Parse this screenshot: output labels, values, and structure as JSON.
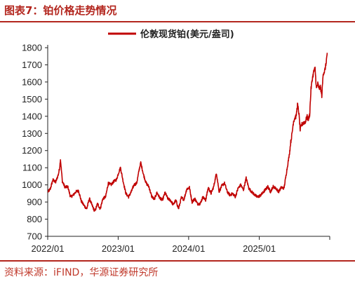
{
  "header": {
    "title": "图表7：铂价格走势情况"
  },
  "source": {
    "text": "资料来源：iFIND，华源证券研究所"
  },
  "colors": {
    "accent": "#b3261e",
    "series": "#c00000",
    "axis": "#222222"
  },
  "chart_data": {
    "type": "line",
    "title": "",
    "xlabel": "",
    "ylabel": "",
    "ylim": [
      700,
      1800
    ],
    "yticks": [
      700,
      800,
      900,
      1000,
      1100,
      1200,
      1300,
      1400,
      1500,
      1600,
      1700,
      1800
    ],
    "xticks": [
      "2022/01",
      "2023/01",
      "2024/01",
      "2025/01"
    ],
    "grid": false,
    "legend": "top",
    "series": [
      {
        "name": "伦敦现货铂(美元/盎司)",
        "color": "#c00000",
        "points": [
          [
            "2022-01-03",
            960
          ],
          [
            "2022-01-14",
            975
          ],
          [
            "2022-01-28",
            1030
          ],
          [
            "2022-02-11",
            1015
          ],
          [
            "2022-02-25",
            1060
          ],
          [
            "2022-03-04",
            1100
          ],
          [
            "2022-03-08",
            1150
          ],
          [
            "2022-03-18",
            1020
          ],
          [
            "2022-04-01",
            985
          ],
          [
            "2022-04-15",
            990
          ],
          [
            "2022-04-29",
            930
          ],
          [
            "2022-05-13",
            940
          ],
          [
            "2022-05-27",
            960
          ],
          [
            "2022-06-10",
            965
          ],
          [
            "2022-06-24",
            905
          ],
          [
            "2022-07-08",
            880
          ],
          [
            "2022-07-22",
            860
          ],
          [
            "2022-08-05",
            920
          ],
          [
            "2022-08-19",
            880
          ],
          [
            "2022-09-02",
            845
          ],
          [
            "2022-09-16",
            890
          ],
          [
            "2022-09-30",
            860
          ],
          [
            "2022-10-14",
            920
          ],
          [
            "2022-10-28",
            930
          ],
          [
            "2022-11-11",
            1010
          ],
          [
            "2022-11-25",
            1000
          ],
          [
            "2022-12-09",
            1020
          ],
          [
            "2022-12-23",
            1030
          ],
          [
            "2023-01-06",
            1080
          ],
          [
            "2023-01-13",
            1100
          ],
          [
            "2023-01-27",
            1020
          ],
          [
            "2023-02-10",
            950
          ],
          [
            "2023-02-24",
            930
          ],
          [
            "2023-03-10",
            960
          ],
          [
            "2023-03-24",
            1000
          ],
          [
            "2023-04-07",
            1010
          ],
          [
            "2023-04-21",
            1095
          ],
          [
            "2023-04-28",
            1130
          ],
          [
            "2023-05-12",
            1060
          ],
          [
            "2023-05-26",
            1010
          ],
          [
            "2023-06-09",
            990
          ],
          [
            "2023-06-23",
            935
          ],
          [
            "2023-07-07",
            915
          ],
          [
            "2023-07-21",
            955
          ],
          [
            "2023-08-04",
            925
          ],
          [
            "2023-08-18",
            910
          ],
          [
            "2023-09-01",
            955
          ],
          [
            "2023-09-15",
            920
          ],
          [
            "2023-09-29",
            910
          ],
          [
            "2023-10-13",
            885
          ],
          [
            "2023-10-27",
            910
          ],
          [
            "2023-11-10",
            860
          ],
          [
            "2023-11-24",
            925
          ],
          [
            "2023-12-08",
            915
          ],
          [
            "2023-12-22",
            975
          ],
          [
            "2024-01-05",
            985
          ],
          [
            "2024-01-19",
            900
          ],
          [
            "2024-02-02",
            920
          ],
          [
            "2024-02-16",
            890
          ],
          [
            "2024-03-01",
            890
          ],
          [
            "2024-03-15",
            930
          ],
          [
            "2024-03-29",
            910
          ],
          [
            "2024-04-12",
            985
          ],
          [
            "2024-04-26",
            950
          ],
          [
            "2024-05-10",
            990
          ],
          [
            "2024-05-24",
            1070
          ],
          [
            "2024-06-07",
            960
          ],
          [
            "2024-06-21",
            995
          ],
          [
            "2024-07-05",
            1010
          ],
          [
            "2024-07-19",
            960
          ],
          [
            "2024-08-02",
            940
          ],
          [
            "2024-08-16",
            950
          ],
          [
            "2024-08-30",
            930
          ],
          [
            "2024-09-13",
            980
          ],
          [
            "2024-09-27",
            1000
          ],
          [
            "2024-10-11",
            970
          ],
          [
            "2024-10-25",
            1040
          ],
          [
            "2024-11-08",
            980
          ],
          [
            "2024-11-22",
            960
          ],
          [
            "2024-12-06",
            945
          ],
          [
            "2024-12-20",
            930
          ],
          [
            "2025-01-03",
            935
          ],
          [
            "2025-01-17",
            950
          ],
          [
            "2025-01-31",
            970
          ],
          [
            "2025-02-14",
            990
          ],
          [
            "2025-02-28",
            960
          ],
          [
            "2025-03-14",
            990
          ],
          [
            "2025-03-28",
            980
          ],
          [
            "2025-04-11",
            960
          ],
          [
            "2025-04-25",
            985
          ],
          [
            "2025-05-09",
            980
          ],
          [
            "2025-05-23",
            1080
          ],
          [
            "2025-06-06",
            1180
          ],
          [
            "2025-06-13",
            1250
          ],
          [
            "2025-06-20",
            1300
          ],
          [
            "2025-06-27",
            1370
          ],
          [
            "2025-07-04",
            1390
          ],
          [
            "2025-07-11",
            1400
          ],
          [
            "2025-07-18",
            1470
          ],
          [
            "2025-07-25",
            1420
          ],
          [
            "2025-08-01",
            1320
          ],
          [
            "2025-08-08",
            1350
          ],
          [
            "2025-08-15",
            1360
          ],
          [
            "2025-08-29",
            1370
          ],
          [
            "2025-09-05",
            1400
          ],
          [
            "2025-09-12",
            1380
          ],
          [
            "2025-09-19",
            1410
          ],
          [
            "2025-09-26",
            1560
          ],
          [
            "2025-10-03",
            1620
          ],
          [
            "2025-10-10",
            1660
          ],
          [
            "2025-10-17",
            1680
          ],
          [
            "2025-10-24",
            1560
          ],
          [
            "2025-10-31",
            1590
          ],
          [
            "2025-11-07",
            1560
          ],
          [
            "2025-11-14",
            1570
          ],
          [
            "2025-11-21",
            1520
          ],
          [
            "2025-11-28",
            1650
          ],
          [
            "2025-12-05",
            1660
          ],
          [
            "2025-12-12",
            1700
          ],
          [
            "2025-12-19",
            1770
          ]
        ]
      }
    ]
  }
}
